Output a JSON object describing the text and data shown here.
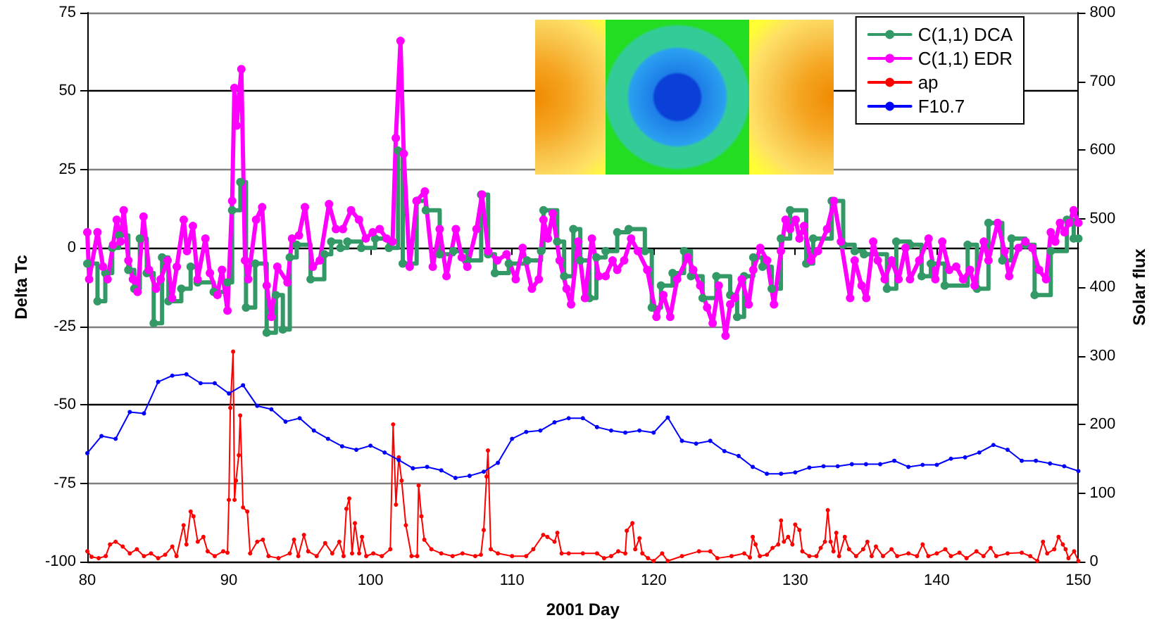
{
  "chart_data": {
    "type": "line",
    "xlabel": "2001 Day",
    "ylabel": "Delta Tc",
    "y2label": "Solar flux",
    "xlim": [
      80,
      150
    ],
    "xticks": [
      80,
      90,
      100,
      110,
      120,
      130,
      140,
      150
    ],
    "ylim": [
      -100,
      75
    ],
    "yticks": [
      -100,
      -75,
      -50,
      -25,
      0,
      25,
      50,
      75
    ],
    "y2lim": [
      0,
      800
    ],
    "y2ticks": [
      0,
      100,
      200,
      300,
      400,
      500,
      600,
      700,
      800
    ],
    "grid": "y",
    "legend": "top right",
    "marker": "circle",
    "series": [
      {
        "name": "C(1,1) DCA",
        "type": "step",
        "color": "#339966",
        "x": [
          80.0,
          80.72,
          81.27,
          81.76,
          82.25,
          82.9,
          83.32,
          83.71,
          84.2,
          84.69,
          85.28,
          85.73,
          86.64,
          87.3,
          87.79,
          88.93,
          89.9,
          90.23,
          90.81,
          91.21,
          91.86,
          92.67,
          93.32,
          93.81,
          94.3,
          94.79,
          95.77,
          96.74,
          97.23,
          97.88,
          98.37,
          99.35,
          100.33,
          101.3,
          101.95,
          102.28,
          103.26,
          103.91,
          104.89,
          105.86,
          106.84,
          107.82,
          108.31,
          108.79,
          109.77,
          111.07,
          112.05,
          112.22,
          113.19,
          113.68,
          114.33,
          114.82,
          115.47,
          115.96,
          116.61,
          117.43,
          118.24,
          119.38,
          119.87,
          120.52,
          121.34,
          122.15,
          122.64,
          123.46,
          124.43,
          125.41,
          125.9,
          126.39,
          127.04,
          127.69,
          128.34,
          128.99,
          129.64,
          130.78,
          131.27,
          132.58,
          133.39,
          134.2,
          134.86,
          136.48,
          137.14,
          138.11,
          138.93,
          139.58,
          140.56,
          142.18,
          142.84,
          143.65,
          144.63,
          145.28,
          146.26,
          146.91,
          148.05,
          149.19,
          149.67,
          150
        ],
        "values": [
          -5,
          -17,
          -8,
          0,
          4,
          -7,
          -13,
          3,
          -8,
          -24,
          -3,
          -17,
          -13,
          -6,
          -11,
          -14,
          -11,
          12,
          21,
          -19,
          -5,
          -27,
          -15,
          -26,
          -3,
          1,
          -10,
          -2,
          2,
          0,
          2,
          0,
          3,
          0,
          31,
          -5,
          15,
          12,
          -2,
          -1,
          -4,
          17,
          -2,
          -8,
          -5,
          -4,
          -1,
          12,
          2,
          -9,
          6,
          -4,
          -16,
          -3,
          -1,
          5,
          6,
          -1,
          -19,
          -12,
          -8,
          -1,
          -9,
          -16,
          -9,
          -15,
          -22,
          -9,
          -3,
          -6,
          -13,
          3,
          12,
          -5,
          3,
          15,
          1,
          -1,
          -2,
          -13,
          2,
          1,
          -9,
          -5,
          -12,
          1,
          -13,
          8,
          -4,
          3,
          1,
          -15,
          -1,
          9,
          3,
          3
        ]
      },
      {
        "name": "C(1,1) EDR",
        "color": "#ff00ff",
        "x": [
          80.0,
          80.13,
          80.72,
          81.11,
          81.43,
          81.82,
          82.08,
          82.35,
          82.57,
          82.9,
          83.22,
          83.55,
          83.97,
          84.36,
          84.85,
          85.18,
          85.67,
          85.99,
          86.32,
          86.81,
          87.04,
          87.46,
          87.79,
          88.34,
          88.66,
          89.19,
          89.51,
          89.9,
          90.23,
          90.39,
          90.55,
          90.88,
          91.14,
          91.37,
          91.92,
          92.35,
          92.67,
          93.0,
          93.42,
          94.14,
          94.46,
          94.95,
          95.37,
          95.93,
          96.42,
          97.07,
          97.56,
          98.05,
          98.63,
          99.19,
          99.67,
          100.16,
          100.65,
          101.14,
          101.56,
          101.79,
          102.12,
          102.35,
          102.77,
          103.26,
          103.84,
          104.4,
          104.89,
          105.37,
          106.03,
          106.45,
          106.84,
          107.49,
          107.88,
          108.31,
          108.96,
          109.61,
          110.26,
          110.75,
          111.4,
          111.89,
          112.22,
          112.54,
          112.87,
          113.36,
          113.85,
          114.17,
          114.66,
          115.15,
          115.64,
          116.13,
          116.61,
          117.1,
          117.43,
          117.92,
          118.41,
          118.89,
          119.55,
          120.2,
          120.69,
          121.17,
          121.66,
          122.41,
          122.8,
          123.29,
          123.78,
          124.17,
          124.6,
          125.08,
          125.41,
          125.73,
          126.22,
          126.71,
          127.04,
          127.53,
          128.02,
          128.5,
          128.99,
          129.32,
          129.64,
          130.03,
          130.3,
          130.62,
          131.11,
          131.6,
          132.25,
          132.74,
          133.23,
          133.88,
          134.2,
          134.69,
          135.02,
          135.51,
          135.83,
          136.32,
          136.81,
          137.3,
          137.79,
          138.11,
          138.76,
          139.42,
          139.9,
          140.39,
          140.88,
          141.37,
          141.86,
          142.35,
          142.67,
          143.32,
          143.65,
          144.3,
          144.79,
          145.11,
          145.77,
          146.26,
          146.74,
          147.23,
          147.72,
          148.05,
          148.37,
          148.7,
          149.02,
          149.35,
          149.67,
          150
        ],
        "values": [
          5,
          -10,
          5,
          -6,
          -10,
          1,
          9,
          2,
          12,
          -4,
          -10,
          -14,
          10,
          -7,
          -13,
          -10,
          -4,
          -16,
          -6,
          9,
          -1,
          7,
          -10,
          3,
          -8,
          -15,
          -7,
          -20,
          15,
          51,
          39,
          57,
          -4,
          -10,
          9,
          13,
          -12,
          -22,
          -6,
          -11,
          3,
          4,
          13,
          -6,
          -4,
          14,
          6,
          6,
          12,
          9,
          3,
          5,
          6,
          3,
          2,
          35,
          66,
          30,
          -6,
          15,
          18,
          -6,
          6,
          -9,
          6,
          -3,
          -6,
          6,
          17,
          -1,
          -4,
          -2,
          -10,
          0,
          -13,
          -10,
          9,
          3,
          11,
          -4,
          -13,
          -18,
          2,
          -16,
          3,
          -9,
          -9,
          -4,
          -7,
          -4,
          3,
          -1,
          -7,
          -22,
          -15,
          -22,
          -10,
          -3,
          -7,
          -12,
          -19,
          -24,
          -12,
          -28,
          -18,
          -16,
          -10,
          -18,
          -7,
          0,
          -4,
          -18,
          -1,
          9,
          6,
          9,
          3,
          7,
          -4,
          -1,
          6,
          15,
          2,
          -16,
          -4,
          -12,
          -16,
          2,
          -4,
          -10,
          -4,
          -10,
          0,
          -10,
          -4,
          3,
          -10,
          2,
          -7,
          -6,
          -10,
          -7,
          -12,
          2,
          -4,
          8,
          -1,
          -9,
          0,
          2,
          0,
          -7,
          -10,
          5,
          2,
          8,
          5,
          8,
          12,
          8
        ]
      },
      {
        "name": "ap",
        "axis": "y2",
        "color": "#ff0000",
        "x": [
          80.0,
          80.3,
          80.8,
          81.3,
          81.6,
          82.0,
          82.5,
          83.0,
          83.5,
          84.0,
          84.5,
          85.0,
          85.5,
          86.0,
          86.3,
          86.8,
          87.0,
          87.3,
          87.5,
          87.8,
          88.2,
          88.5,
          89.0,
          89.6,
          89.9,
          90.0,
          90.1,
          90.3,
          90.4,
          90.5,
          90.7,
          90.8,
          91.0,
          91.3,
          91.5,
          92.0,
          92.4,
          92.8,
          93.5,
          94.3,
          94.6,
          94.9,
          95.3,
          95.6,
          96.2,
          96.8,
          97.3,
          97.8,
          98.1,
          98.3,
          98.5,
          98.7,
          98.9,
          99.2,
          99.4,
          99.7,
          100.2,
          100.8,
          101.4,
          101.6,
          101.8,
          102.0,
          102.2,
          102.5,
          102.9,
          103.3,
          103.4,
          103.6,
          103.8,
          104.3,
          105.0,
          105.8,
          106.5,
          107.4,
          107.8,
          108.0,
          108.2,
          108.3,
          108.5,
          109.0,
          110.0,
          111.0,
          111.5,
          112.2,
          112.5,
          113.0,
          113.2,
          113.5,
          114.0,
          115.0,
          116.0,
          116.5,
          117.0,
          117.5,
          118.0,
          118.1,
          118.5,
          118.7,
          119.0,
          119.2,
          119.6,
          120.0,
          120.6,
          121.0,
          122.0,
          123.2,
          124.0,
          124.5,
          125.5,
          126.4,
          126.8,
          127.0,
          127.2,
          127.5,
          128.0,
          128.4,
          128.8,
          129.0,
          129.2,
          129.5,
          129.8,
          130.0,
          130.3,
          130.5,
          131.0,
          131.5,
          131.8,
          132.1,
          132.3,
          132.5,
          132.7,
          132.9,
          133.1,
          133.5,
          133.8,
          134.3,
          134.8,
          135.1,
          135.4,
          135.7,
          136.2,
          136.8,
          137.2,
          138.0,
          138.6,
          139.0,
          139.4,
          140.0,
          140.6,
          141.0,
          141.6,
          142.1,
          142.8,
          143.3,
          143.8,
          144.2,
          145.0,
          146.0,
          146.6,
          147.1,
          147.5,
          147.8,
          148.3,
          148.6,
          148.9,
          149.1,
          149.3,
          149.7,
          150.0
        ],
        "values": [
          15,
          7,
          5,
          8,
          25,
          29,
          22,
          12,
          18,
          8,
          12,
          5,
          10,
          22,
          8,
          53,
          25,
          73,
          66,
          29,
          36,
          15,
          8,
          15,
          13,
          90,
          224,
          306,
          90,
          118,
          155,
          213,
          79,
          73,
          12,
          29,
          32,
          8,
          5,
          12,
          32,
          8,
          39,
          15,
          8,
          27,
          12,
          29,
          8,
          77,
          92,
          12,
          56,
          12,
          36,
          8,
          12,
          8,
          18,
          200,
          83,
          152,
          118,
          53,
          8,
          8,
          111,
          66,
          32,
          18,
          12,
          8,
          12,
          8,
          10,
          46,
          124,
          162,
          18,
          12,
          8,
          8,
          18,
          39,
          36,
          29,
          42,
          12,
          12,
          12,
          12,
          5,
          8,
          15,
          12,
          45,
          56,
          18,
          34,
          12,
          5,
          1,
          12,
          1,
          8,
          15,
          15,
          5,
          8,
          12,
          6,
          36,
          25,
          8,
          10,
          20,
          25,
          60,
          29,
          36,
          25,
          54,
          46,
          15,
          8,
          8,
          20,
          29,
          75,
          29,
          15,
          42,
          8,
          36,
          18,
          8,
          18,
          29,
          8,
          22,
          8,
          18,
          8,
          12,
          8,
          25,
          8,
          12,
          18,
          8,
          13,
          5,
          15,
          8,
          20,
          8,
          12,
          13,
          8,
          1,
          29,
          12,
          18,
          36,
          25,
          18,
          5,
          15,
          1
        ]
      },
      {
        "name": "F10.7",
        "axis": "y2",
        "color": "#0000ff",
        "x": [
          80,
          81,
          82,
          83,
          84,
          85,
          86,
          87,
          88,
          89,
          90,
          91,
          92,
          93,
          94,
          95,
          96,
          97,
          98,
          99,
          100,
          101,
          102,
          103,
          104,
          105,
          106,
          107,
          108,
          109,
          110,
          111,
          112,
          113,
          114,
          115,
          116,
          117,
          118,
          119,
          120,
          121,
          122,
          123,
          124,
          125,
          126,
          127,
          128,
          129,
          130,
          131,
          132,
          133,
          134,
          135,
          136,
          137,
          138,
          139,
          140,
          141,
          142,
          143,
          144,
          145,
          146,
          147,
          148,
          149,
          150
        ],
        "values": [
          158,
          183,
          179,
          218,
          216,
          262,
          271,
          273,
          260,
          260,
          245,
          257,
          227,
          222,
          204,
          209,
          191,
          179,
          168,
          163,
          169,
          159,
          148,
          136,
          138,
          133,
          122,
          125,
          131,
          144,
          179,
          189,
          191,
          203,
          209,
          209,
          196,
          191,
          188,
          191,
          188,
          210,
          176,
          172,
          176,
          161,
          154,
          138,
          128,
          128,
          130,
          137,
          139,
          139,
          142,
          142,
          142,
          147,
          138,
          141,
          141,
          150,
          152,
          159,
          170,
          163,
          147,
          147,
          143,
          139,
          132
        ]
      }
    ]
  }
}
